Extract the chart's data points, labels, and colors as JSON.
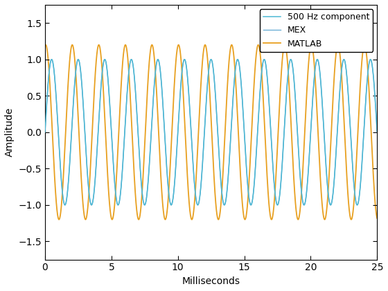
{
  "title": "",
  "xlabel": "Milliseconds",
  "ylabel": "Amplitude",
  "xlim": [
    0,
    25
  ],
  "ylim": [
    -1.75,
    1.75
  ],
  "xticks": [
    0,
    5,
    10,
    15,
    20,
    25
  ],
  "yticks": [
    -1.5,
    -1.0,
    -0.5,
    0.0,
    0.5,
    1.0,
    1.5
  ],
  "freq_hz": 500,
  "duration_ms": 25,
  "n_points": 5000,
  "component_color": "#4db8d4",
  "mex_color": "#6baed6",
  "matlab_color": "#e8a020",
  "component_label": "500 Hz component",
  "mex_label": "MEX",
  "matlab_label": "MATLAB",
  "component_lw": 1.1,
  "mex_lw": 1.0,
  "matlab_lw": 1.3,
  "matlab_amplitude": 1.2,
  "matlab_phase_lead_ms": 0.45,
  "mex_phase_lead_ms": 0.0,
  "background_color": "#ffffff",
  "legend_loc": "upper right",
  "fig_width": 5.6,
  "fig_height": 4.2,
  "dpi": 100,
  "xlabel_fontsize": 10,
  "ylabel_fontsize": 10,
  "tick_fontsize": 10,
  "legend_fontsize": 9
}
